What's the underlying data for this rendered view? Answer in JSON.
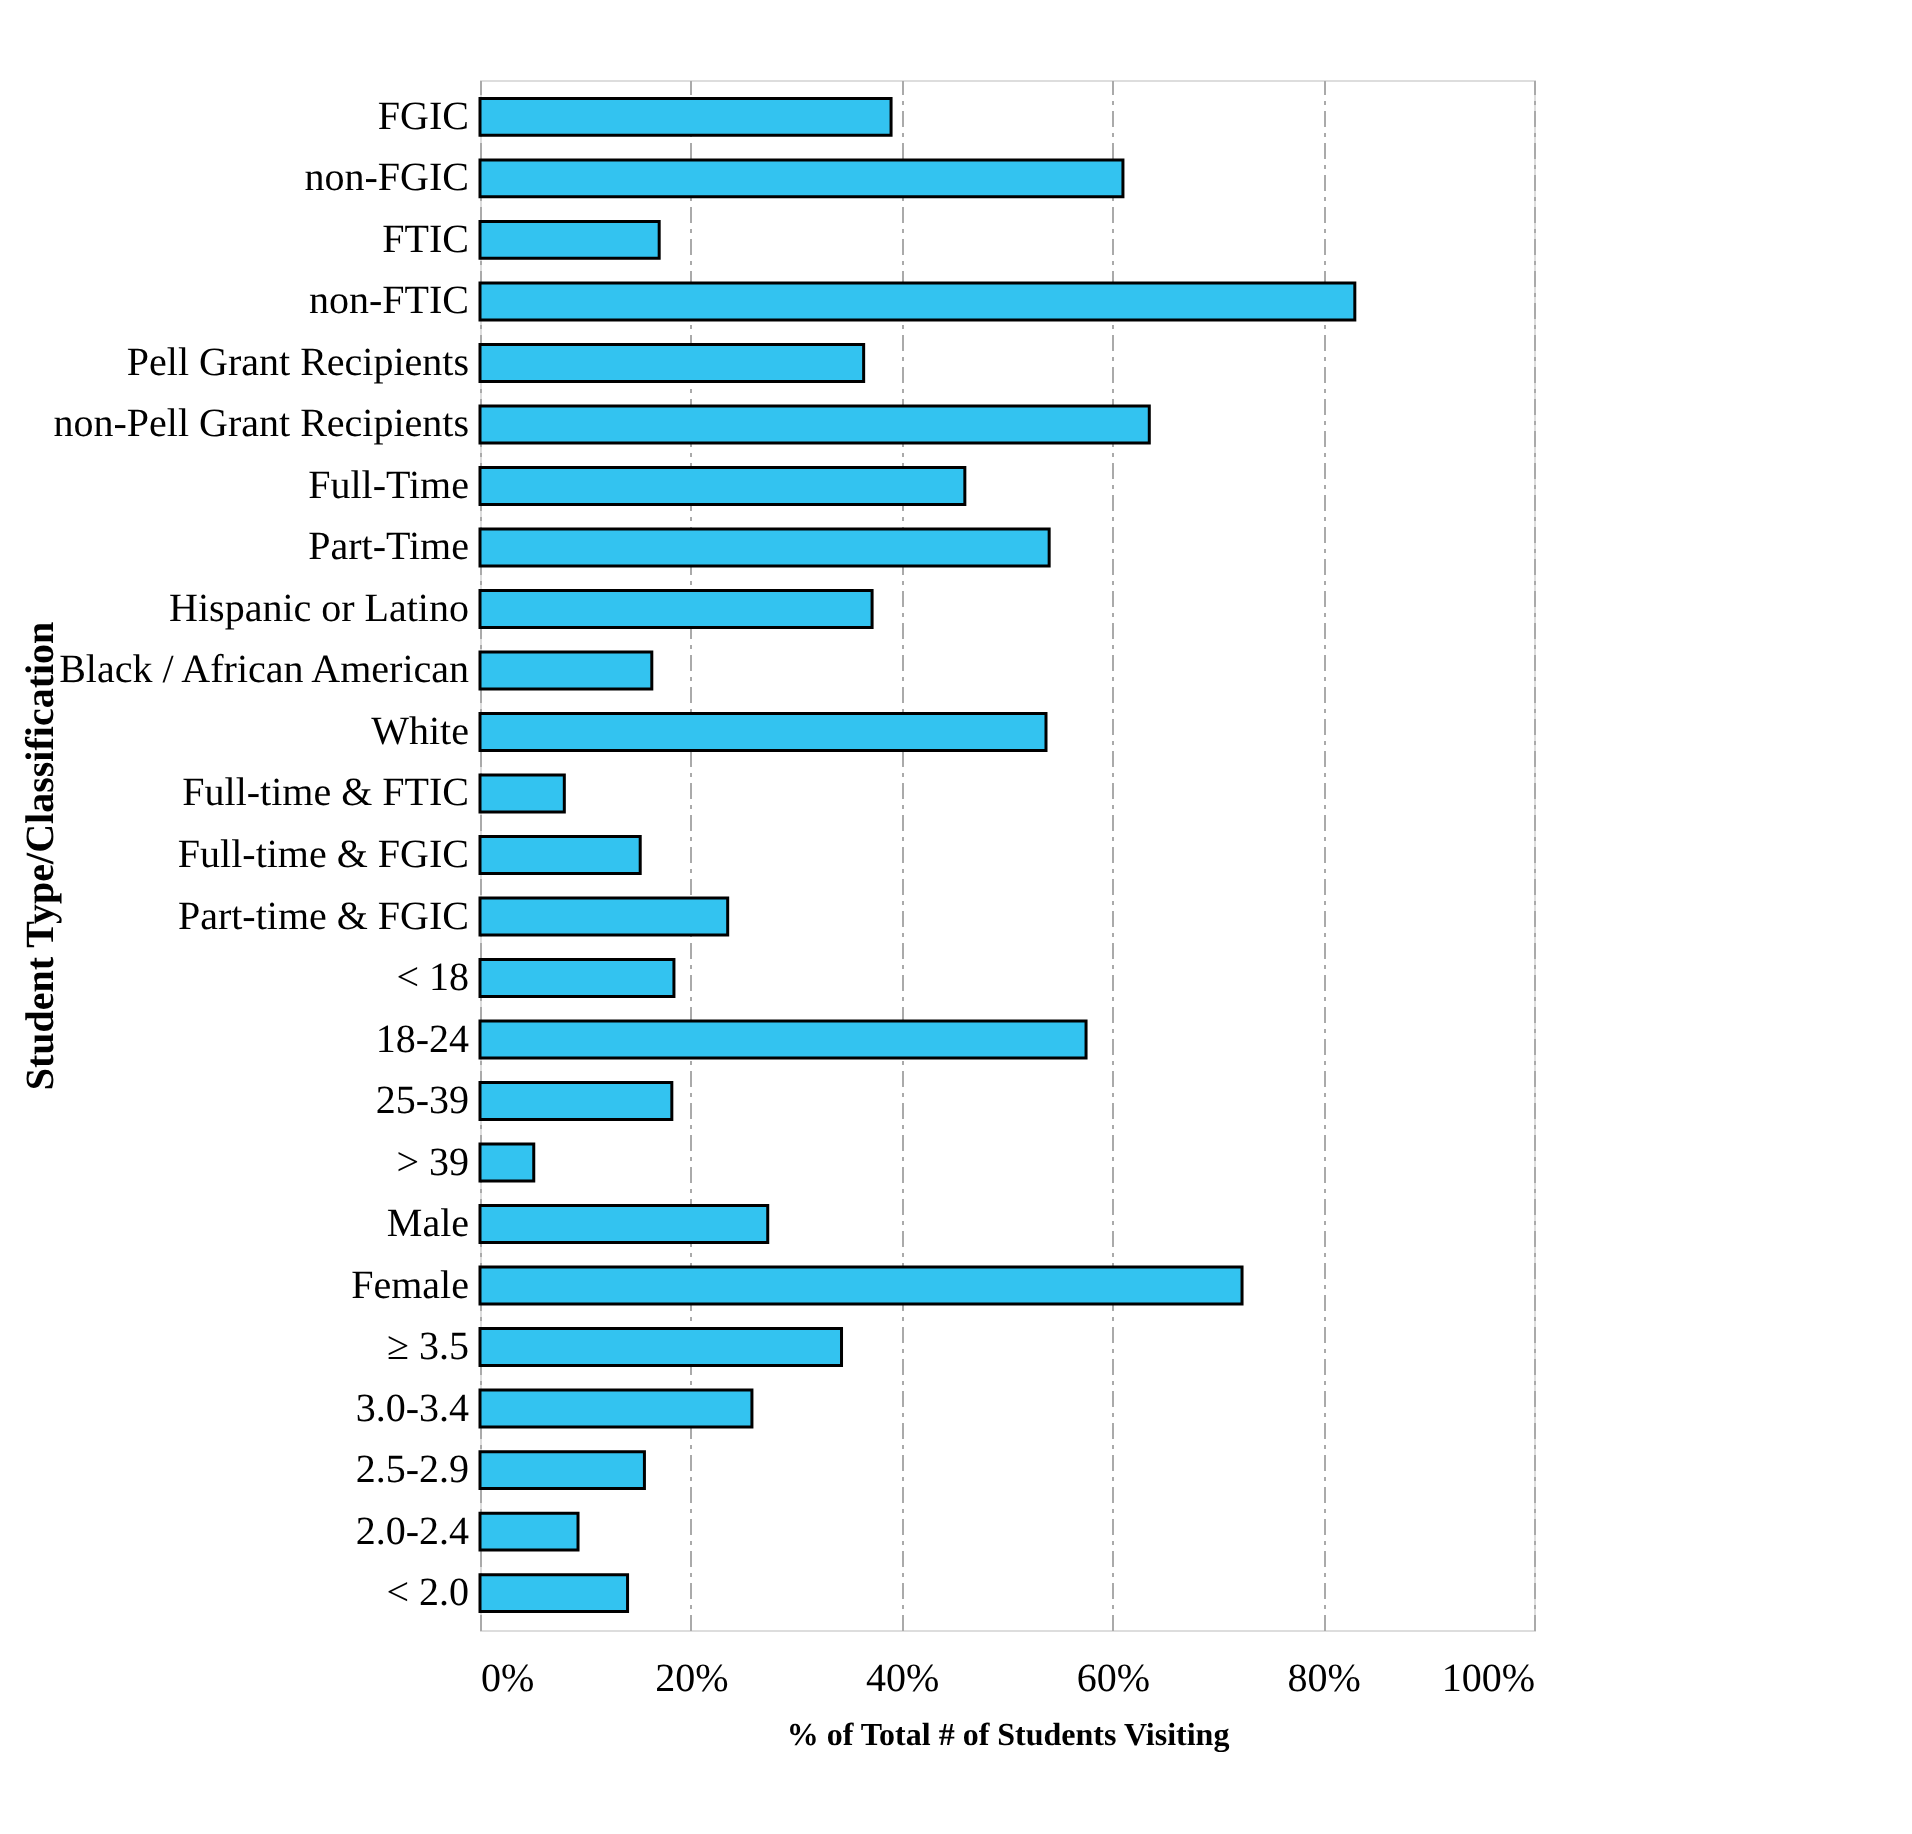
{
  "chart_data": {
    "type": "bar",
    "orientation": "horizontal",
    "categories": [
      "FGIC",
      "non-FGIC",
      "FTIC",
      "non-FTIC",
      "Pell Grant Recipients",
      "non-Pell Grant Recipients",
      "Full-Time",
      "Part-Time",
      "Hispanic or Latino",
      "Black / African American",
      "White",
      "Full-time & FTIC",
      "Full-time & FGIC",
      "Part-time & FGIC",
      "< 18",
      "18-24",
      "25-39",
      "> 39",
      "Male",
      "Female",
      "≥ 3.5",
      "3.0-3.4",
      "2.5-2.9",
      "2.0-2.4",
      "< 2.0"
    ],
    "values": [
      39,
      61,
      17,
      83,
      36.4,
      63.5,
      46,
      54,
      37.2,
      16.3,
      53.7,
      8,
      15.2,
      23.5,
      18.4,
      57.5,
      18.2,
      5.1,
      27.3,
      72.3,
      34.3,
      25.8,
      15.6,
      9.3,
      14
    ],
    "color": "#33c3f0",
    "xlim": [
      0,
      100
    ],
    "xticks": [
      {
        "value": 0,
        "label": "0%"
      },
      {
        "value": 20,
        "label": "20%"
      },
      {
        "value": 40,
        "label": "40%"
      },
      {
        "value": 60,
        "label": "60%"
      },
      {
        "value": 80,
        "label": "80%"
      },
      {
        "value": 100,
        "label": "100%"
      }
    ],
    "xlabel": "% of Total # of Students Visiting",
    "ylabel": "Student Type/Classification",
    "grid": "x"
  }
}
